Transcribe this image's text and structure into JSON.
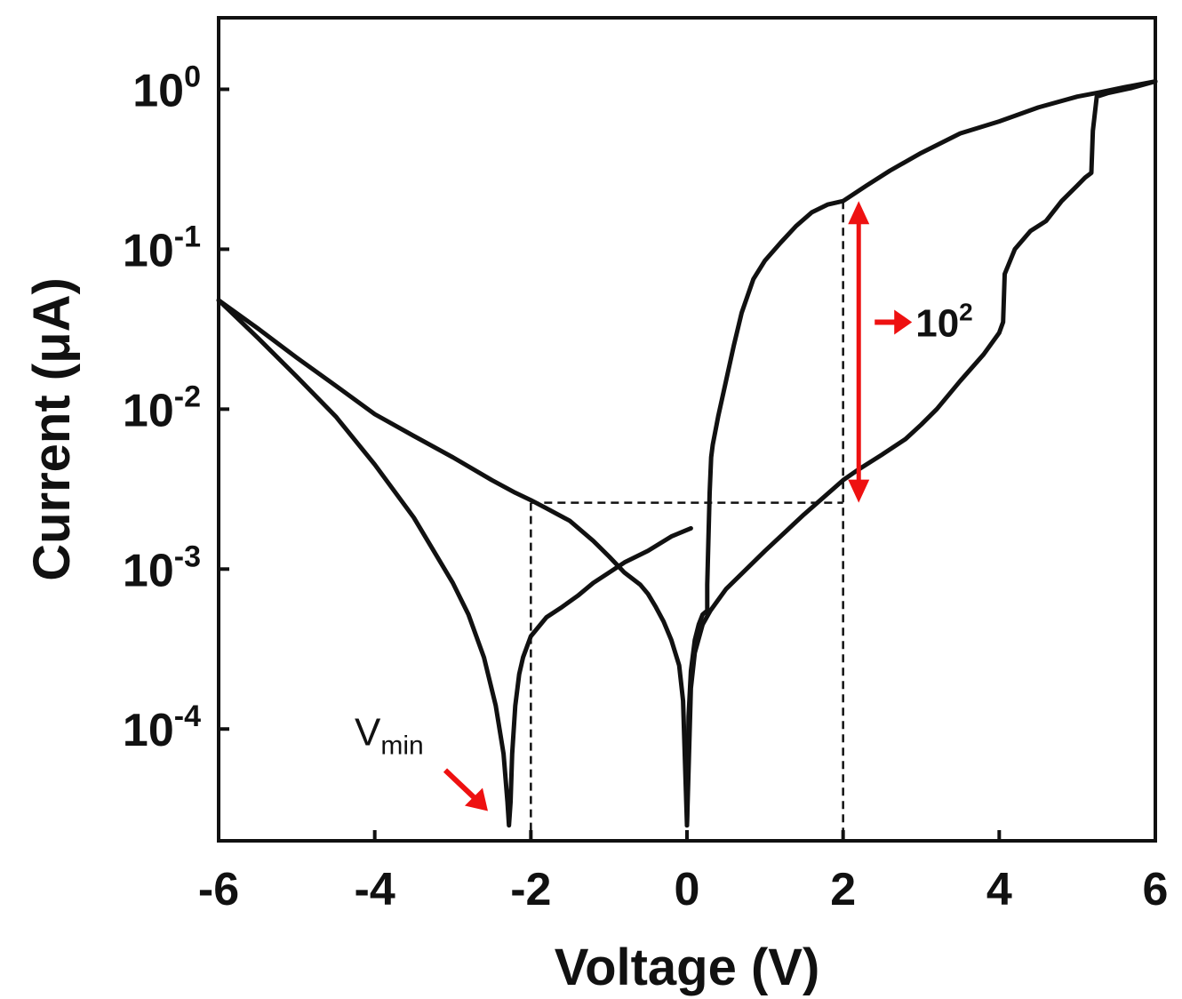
{
  "chart_data": {
    "type": "line",
    "title": "",
    "xlabel": "Voltage (V)",
    "ylabel": "Current (μA)",
    "x_scale": "linear",
    "y_scale": "log",
    "xlim": [
      -6,
      6
    ],
    "ylim": [
      2e-05,
      2.8
    ],
    "x_ticks": [
      -6,
      -4,
      -2,
      0,
      2,
      4,
      6
    ],
    "x_tick_labels": [
      "-6",
      "-4",
      "-2",
      "0",
      "2",
      "4",
      "6"
    ],
    "y_ticks": [
      1,
      0.1,
      0.01,
      0.001,
      0.0001
    ],
    "y_tick_labels": [
      {
        "base": "10",
        "exp": "0"
      },
      {
        "base": "10",
        "exp": "-1"
      },
      {
        "base": "10",
        "exp": "-2"
      },
      {
        "base": "10",
        "exp": "-3"
      },
      {
        "base": "10",
        "exp": "-4"
      }
    ],
    "grid": false,
    "legend": "none",
    "line_color": "#111111",
    "series": [
      {
        "x": [
          0.0,
          0.02,
          0.05,
          0.1,
          0.15,
          0.2,
          0.26,
          0.26,
          0.29,
          0.31,
          0.33,
          0.4,
          0.5,
          0.6,
          0.7,
          0.85,
          1.0,
          1.2,
          1.4,
          1.6,
          1.8,
          2.0,
          2.3,
          2.6,
          3.0,
          3.5,
          4.0,
          4.5,
          5.0,
          5.3,
          5.6,
          6.0
        ],
        "y": [
          2.5e-05,
          0.00012,
          0.00023,
          0.00036,
          0.00045,
          0.00052,
          0.00055,
          0.0008,
          0.003,
          0.005,
          0.006,
          0.009,
          0.015,
          0.025,
          0.04,
          0.065,
          0.085,
          0.11,
          0.14,
          0.17,
          0.19,
          0.2,
          0.25,
          0.31,
          0.4,
          0.53,
          0.63,
          0.77,
          0.9,
          0.96,
          1.03,
          1.12
        ]
      },
      {
        "x": [
          6.0,
          5.7,
          5.4,
          5.25,
          5.2,
          5.18,
          5.1,
          5.0,
          4.8,
          4.6,
          4.4,
          4.2,
          4.07,
          4.05,
          4.0,
          3.8,
          3.5,
          3.2,
          3.0,
          2.8,
          2.5,
          2.2,
          2.0,
          1.5,
          1.0,
          0.5,
          0.3,
          0.2,
          0.1,
          0.05,
          0.0
        ],
        "y": [
          1.12,
          1.02,
          0.95,
          0.9,
          0.55,
          0.3,
          0.28,
          0.25,
          0.2,
          0.15,
          0.13,
          0.1,
          0.07,
          0.035,
          0.03,
          0.022,
          0.015,
          0.01,
          0.008,
          0.0065,
          0.0052,
          0.0042,
          0.0036,
          0.0022,
          0.0013,
          0.00075,
          0.00055,
          0.00045,
          0.0003,
          0.00018,
          2.5e-05
        ]
      },
      {
        "x": [
          0.0,
          -0.05,
          -0.1,
          -0.2,
          -0.3,
          -0.4,
          -0.5,
          -0.6,
          -0.8,
          -1.0,
          -1.2,
          -1.5,
          -1.8,
          -2.0,
          -2.2,
          -2.5,
          -3.0,
          -3.5,
          -4.0,
          -4.5,
          -5.0,
          -5.5,
          -6.0
        ],
        "y": [
          2.5e-05,
          0.00015,
          0.00025,
          0.00036,
          0.00047,
          0.00058,
          0.0007,
          0.0008,
          0.00095,
          0.0012,
          0.0015,
          0.002,
          0.0024,
          0.0027,
          0.003,
          0.0036,
          0.005,
          0.0068,
          0.0093,
          0.014,
          0.021,
          0.032,
          0.048
        ]
      },
      {
        "x": [
          -6.0,
          -5.5,
          -5.0,
          -4.5,
          -4.0,
          -3.5,
          -3.0,
          -2.8,
          -2.6,
          -2.45,
          -2.35,
          -2.3,
          -2.28,
          -2.26,
          -2.24,
          -2.2,
          -2.15,
          -2.1,
          -2.0,
          -1.8,
          -1.6,
          -1.4,
          -1.2,
          -1.0,
          -0.8,
          -0.5,
          -0.2,
          0.05
        ],
        "y": [
          0.048,
          0.028,
          0.016,
          0.009,
          0.0045,
          0.0021,
          0.00082,
          0.00052,
          0.00028,
          0.00014,
          7e-05,
          3.5e-05,
          2.5e-05,
          3.5e-05,
          7e-05,
          0.00014,
          0.00022,
          0.00028,
          0.00038,
          0.0005,
          0.00058,
          0.00068,
          0.00082,
          0.00095,
          0.0011,
          0.0013,
          0.0016,
          0.0018
        ]
      }
    ],
    "guides": {
      "h_level": 0.0026,
      "v1_x": -2,
      "v2_x": 2,
      "v2_top": 0.2,
      "color": "#111111"
    },
    "annotations": {
      "arrow_color": "#ee1111",
      "ratio_base": "10",
      "ratio_exp": "2",
      "ratio_x": 2.2,
      "ratio_top": 0.2,
      "ratio_bottom": 0.0026,
      "ratio_label_y": 0.035,
      "vmin_base": "V",
      "vmin_sub": "min",
      "vmin_x": -2.3,
      "vmin_y": 2.5e-05
    }
  }
}
